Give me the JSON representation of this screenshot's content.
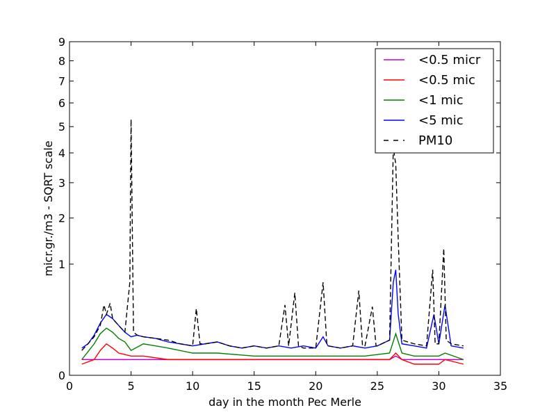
{
  "chart_data": {
    "type": "line",
    "title": "",
    "xlabel": "day in the month Pec Merle",
    "ylabel": "micr.gr./m3 - SQRT scale",
    "y_scale": "sqrt",
    "xlim": [
      0,
      35
    ],
    "ylim": [
      0,
      9
    ],
    "x_ticks": [
      0,
      5,
      10,
      15,
      20,
      25,
      30,
      35
    ],
    "y_ticks": [
      0,
      1,
      2,
      3,
      4,
      5,
      6,
      7,
      8,
      9
    ],
    "grid": false,
    "legend_position": "top-right",
    "colors": {
      "magenta": "#bf00bf",
      "red": "#ff0000",
      "green": "#008000",
      "blue": "#0000ff",
      "black": "#000000"
    },
    "series": [
      {
        "name": "<0.5 micr",
        "color": "#bf00bf",
        "style": "solid",
        "x": [
          1.0,
          2.0,
          3.0,
          4.0,
          5.0,
          6.0,
          8.0,
          10.0,
          12.0,
          15.0,
          18.0,
          20.0,
          22.0,
          24.0,
          26.0,
          26.5,
          27.0,
          29.0,
          30.5,
          32.0
        ],
        "y": [
          0.02,
          0.02,
          0.02,
          0.02,
          0.02,
          0.02,
          0.02,
          0.02,
          0.02,
          0.02,
          0.02,
          0.02,
          0.02,
          0.02,
          0.02,
          0.03,
          0.02,
          0.02,
          0.02,
          0.02
        ]
      },
      {
        "name": "<0.5 mic",
        "color": "#ff0000",
        "style": "solid",
        "x": [
          1.0,
          2.0,
          2.5,
          3.0,
          3.5,
          4.0,
          5.0,
          6.0,
          8.0,
          10.0,
          12.0,
          15.0,
          18.0,
          20.0,
          22.0,
          24.0,
          26.0,
          26.5,
          27.0,
          28.0,
          30.0,
          30.5,
          32.0
        ],
        "y": [
          0.01,
          0.02,
          0.05,
          0.08,
          0.06,
          0.04,
          0.03,
          0.03,
          0.02,
          0.02,
          0.02,
          0.02,
          0.02,
          0.02,
          0.02,
          0.02,
          0.02,
          0.04,
          0.02,
          0.01,
          0.01,
          0.02,
          0.01
        ]
      },
      {
        "name": "<1 mic",
        "color": "#008000",
        "style": "solid",
        "x": [
          1.0,
          2.0,
          2.5,
          3.0,
          3.5,
          4.0,
          4.5,
          5.0,
          6.0,
          7.0,
          8.0,
          10.0,
          12.0,
          15.0,
          18.0,
          20.0,
          22.0,
          24.0,
          26.0,
          26.5,
          27.0,
          28.0,
          30.0,
          30.5,
          32.0
        ],
        "y": [
          0.02,
          0.08,
          0.14,
          0.18,
          0.15,
          0.11,
          0.09,
          0.05,
          0.08,
          0.07,
          0.06,
          0.04,
          0.04,
          0.03,
          0.03,
          0.03,
          0.03,
          0.03,
          0.04,
          0.14,
          0.04,
          0.03,
          0.03,
          0.04,
          0.02
        ]
      },
      {
        "name": "<5 mic",
        "color": "#0000ff",
        "style": "solid",
        "x": [
          1.0,
          1.5,
          2.0,
          2.5,
          3.0,
          3.5,
          4.0,
          4.5,
          5.0,
          5.5,
          6.0,
          7.0,
          8.0,
          9.0,
          10.0,
          11.0,
          12.0,
          13.0,
          14.0,
          15.0,
          16.0,
          17.0,
          18.0,
          19.0,
          20.0,
          20.6,
          21.0,
          22.0,
          23.0,
          24.0,
          25.0,
          26.0,
          26.3,
          26.5,
          26.7,
          27.0,
          28.0,
          29.0,
          29.6,
          30.0,
          30.5,
          31.0,
          32.0
        ],
        "y": [
          0.06,
          0.08,
          0.13,
          0.22,
          0.3,
          0.26,
          0.2,
          0.15,
          0.12,
          0.13,
          0.12,
          0.11,
          0.09,
          0.08,
          0.07,
          0.08,
          0.09,
          0.07,
          0.06,
          0.07,
          0.06,
          0.07,
          0.06,
          0.07,
          0.06,
          0.12,
          0.07,
          0.06,
          0.07,
          0.06,
          0.07,
          0.1,
          0.7,
          0.9,
          0.3,
          0.08,
          0.07,
          0.06,
          0.3,
          0.08,
          0.4,
          0.07,
          0.06
        ]
      },
      {
        "name": "PM10",
        "color": "#000000",
        "style": "dashed",
        "x": [
          1.0,
          1.5,
          2.0,
          2.5,
          2.8,
          3.0,
          3.3,
          3.5,
          4.0,
          4.5,
          4.9,
          5.0,
          5.2,
          5.5,
          6.0,
          7.0,
          8.0,
          9.0,
          10.0,
          10.3,
          10.6,
          11.0,
          12.0,
          13.0,
          14.0,
          15.0,
          16.0,
          17.0,
          17.5,
          17.8,
          18.3,
          18.6,
          19.0,
          20.0,
          20.6,
          20.9,
          21.0,
          22.0,
          23.0,
          23.5,
          23.8,
          24.0,
          24.6,
          24.9,
          25.0,
          26.0,
          26.3,
          26.5,
          26.7,
          27.0,
          28.0,
          29.0,
          29.5,
          29.7,
          30.0,
          30.4,
          30.6,
          31.0,
          32.0
        ],
        "y": [
          0.05,
          0.08,
          0.12,
          0.2,
          0.4,
          0.3,
          0.42,
          0.26,
          0.2,
          0.15,
          0.7,
          5.3,
          0.15,
          0.13,
          0.12,
          0.11,
          0.1,
          0.08,
          0.07,
          0.36,
          0.08,
          0.08,
          0.09,
          0.07,
          0.06,
          0.07,
          0.06,
          0.07,
          0.4,
          0.07,
          0.55,
          0.07,
          0.06,
          0.06,
          0.7,
          0.08,
          0.07,
          0.06,
          0.07,
          0.58,
          0.07,
          0.07,
          0.38,
          0.07,
          0.07,
          0.1,
          4.2,
          3.6,
          1.5,
          0.1,
          0.08,
          0.07,
          0.9,
          0.08,
          0.08,
          1.3,
          0.1,
          0.08,
          0.07
        ]
      }
    ]
  }
}
